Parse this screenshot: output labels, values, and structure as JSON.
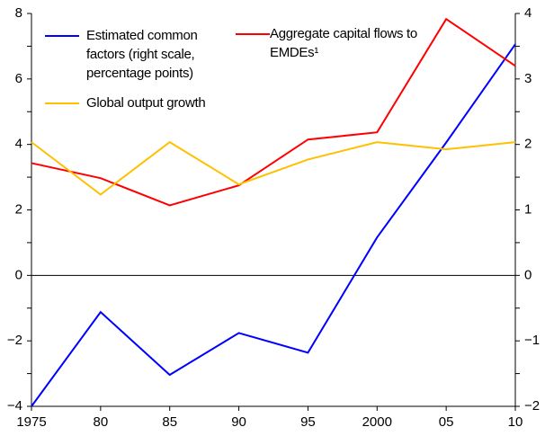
{
  "chart_data": {
    "type": "line",
    "categories": [
      "1975",
      "80",
      "85",
      "90",
      "95",
      "2000",
      "05",
      "10"
    ],
    "ylim": [
      -4,
      8
    ],
    "yticks": [
      {
        "value": -4,
        "label": "−4"
      },
      {
        "value": -2,
        "label": "−2"
      },
      0,
      2,
      4,
      6,
      8
    ],
    "yminorticks": [
      -3,
      -1,
      1,
      3,
      5,
      7
    ],
    "y2lim": [
      -2,
      4
    ],
    "y2ticks": [
      {
        "value": -2,
        "label": "−2"
      },
      {
        "value": -1,
        "label": "−1"
      },
      0,
      1,
      2,
      3,
      4
    ],
    "y2minorticks": [
      -1.5,
      -0.5,
      0.5,
      1.5,
      2.5,
      3.5
    ],
    "series": [
      {
        "name": "Estimated common factors (right scale, percentage points)",
        "color": "#0000ff",
        "axis": "y2",
        "values": [
          -2.0,
          -0.56,
          -1.52,
          -0.88,
          -1.18,
          0.58,
          2.03,
          3.53
        ]
      },
      {
        "name": "Aggregate capital flows to EMDEs¹",
        "color": "#ff0000",
        "values": [
          3.43,
          2.97,
          2.14,
          2.75,
          4.15,
          4.37,
          7.83,
          6.4
        ]
      },
      {
        "name": "Global output growth",
        "color": "#ffc000",
        "values": [
          4.07,
          2.47,
          4.07,
          2.78,
          3.54,
          4.07,
          3.85,
          4.07
        ]
      }
    ]
  }
}
